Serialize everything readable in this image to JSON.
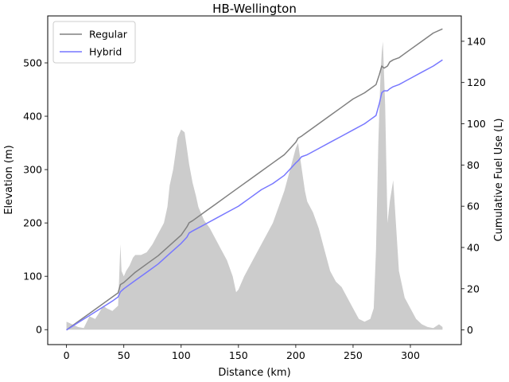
{
  "chart_data": {
    "type": "line",
    "title": "HB-Wellington",
    "xlabel": "Distance (km)",
    "ylabel": "Elevation (m)",
    "ylabel_right": "Cumulative Fuel Use (L)",
    "xlim": [
      -16.4,
      344.4
    ],
    "ylim": [
      -28,
      588
    ],
    "ylim_right": [
      -7.1,
      152.3
    ],
    "x_ticks": [
      0,
      50,
      100,
      150,
      200,
      250,
      300
    ],
    "y_ticks": [
      0,
      100,
      200,
      300,
      400,
      500
    ],
    "y_ticks_right": [
      0,
      20,
      40,
      60,
      80,
      100,
      120,
      140
    ],
    "grid": false,
    "legend_position": "top-left",
    "elevation": {
      "color": "#cccccc",
      "x": [
        0,
        5,
        10,
        15,
        20,
        25,
        28,
        32,
        35,
        40,
        45,
        47,
        48,
        50,
        52,
        55,
        58,
        60,
        65,
        70,
        75,
        80,
        85,
        88,
        90,
        93,
        95,
        97,
        100,
        103,
        105,
        107,
        110,
        113,
        115,
        118,
        120,
        125,
        130,
        135,
        140,
        145,
        148,
        150,
        155,
        160,
        165,
        170,
        175,
        180,
        185,
        190,
        195,
        200,
        202,
        204,
        206,
        208,
        210,
        215,
        220,
        225,
        230,
        235,
        240,
        245,
        250,
        255,
        260,
        265,
        268,
        270,
        272,
        274,
        275,
        276,
        278,
        280,
        282,
        285,
        290,
        295,
        300,
        305,
        310,
        315,
        320,
        325,
        328
      ],
      "y": [
        15,
        10,
        5,
        3,
        25,
        20,
        30,
        45,
        40,
        35,
        45,
        160,
        110,
        100,
        110,
        120,
        135,
        140,
        140,
        145,
        160,
        180,
        200,
        230,
        270,
        300,
        330,
        360,
        375,
        370,
        340,
        310,
        275,
        250,
        230,
        215,
        205,
        190,
        170,
        150,
        130,
        100,
        70,
        75,
        100,
        120,
        140,
        160,
        180,
        200,
        230,
        260,
        300,
        340,
        350,
        320,
        290,
        260,
        240,
        220,
        190,
        150,
        110,
        90,
        80,
        60,
        40,
        20,
        15,
        20,
        40,
        150,
        350,
        480,
        520,
        540,
        420,
        200,
        240,
        280,
        110,
        60,
        40,
        20,
        10,
        5,
        3,
        10,
        5
      ]
    },
    "series": [
      {
        "name": "Regular",
        "color": "#808080",
        "x": [
          0,
          10,
          20,
          30,
          40,
          45,
          47,
          50,
          60,
          70,
          80,
          90,
          100,
          105,
          107,
          110,
          120,
          130,
          140,
          150,
          160,
          170,
          180,
          190,
          195,
          200,
          202,
          205,
          210,
          220,
          230,
          240,
          250,
          260,
          265,
          270,
          273,
          275,
          277,
          280,
          282,
          285,
          290,
          300,
          310,
          320,
          328
        ],
        "y": [
          0,
          4,
          8,
          12,
          16,
          18,
          22,
          23,
          28,
          32,
          36,
          41,
          46,
          50,
          52,
          53,
          57,
          61,
          65,
          69,
          73,
          77,
          81,
          85,
          88,
          91,
          93,
          94,
          96,
          100,
          104,
          108,
          112,
          115,
          117,
          119,
          124,
          128,
          127,
          128,
          130,
          131,
          132,
          136,
          140,
          144,
          146
        ]
      },
      {
        "name": "Hybrid",
        "color": "#7777ff",
        "x": [
          0,
          10,
          20,
          30,
          40,
          45,
          47,
          50,
          60,
          70,
          80,
          90,
          100,
          105,
          107,
          110,
          120,
          130,
          140,
          150,
          160,
          170,
          180,
          190,
          195,
          200,
          202,
          205,
          210,
          220,
          230,
          240,
          250,
          260,
          265,
          270,
          273,
          275,
          277,
          280,
          282,
          285,
          290,
          300,
          310,
          320,
          328
        ],
        "y": [
          0,
          3.5,
          7,
          10.5,
          14,
          16,
          18.5,
          20,
          24,
          28,
          32,
          37,
          42,
          45,
          47,
          48,
          51,
          54,
          57,
          60,
          64,
          68,
          71,
          75,
          78,
          81,
          82,
          84,
          85,
          88,
          91,
          94,
          97,
          100,
          102,
          104,
          110,
          115,
          116,
          116,
          117,
          118,
          119,
          122,
          125,
          128,
          131
        ]
      }
    ]
  }
}
